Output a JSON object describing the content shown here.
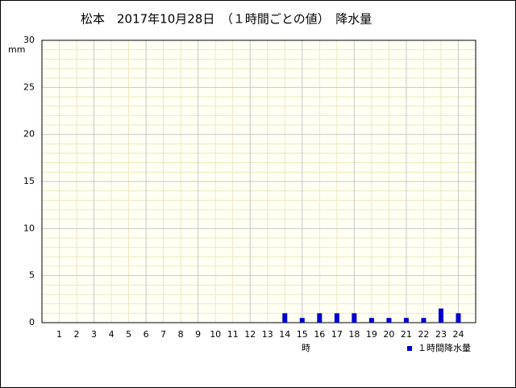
{
  "chart_data": {
    "type": "bar",
    "title": "松本　2017年10月28日　（１時間ごとの値）　降水量",
    "y_label": "mm",
    "x_label": "時",
    "categories": [
      "1",
      "2",
      "3",
      "4",
      "5",
      "6",
      "7",
      "8",
      "9",
      "10",
      "11",
      "12",
      "13",
      "14",
      "15",
      "16",
      "17",
      "18",
      "19",
      "20",
      "21",
      "22",
      "23",
      "24"
    ],
    "series": [
      {
        "name": "１時間降水量",
        "color": "#0000cc",
        "values": [
          0,
          0,
          0,
          0,
          0,
          0,
          0,
          0,
          0,
          0,
          0,
          0,
          0,
          1.0,
          0.5,
          1.0,
          1.0,
          1.0,
          0.5,
          0.5,
          0.5,
          0.5,
          1.5,
          1.0
        ]
      }
    ],
    "ylim": [
      0,
      30
    ],
    "yticks": [
      0,
      5,
      10,
      15,
      20,
      25,
      30
    ],
    "minor_yticks": [
      1,
      2,
      3,
      4,
      6,
      7,
      8,
      9,
      11,
      12,
      13,
      14,
      16,
      17,
      18,
      19,
      21,
      22,
      23,
      24,
      26,
      27,
      28,
      29
    ],
    "grid": true,
    "legend": "bottom-right"
  }
}
